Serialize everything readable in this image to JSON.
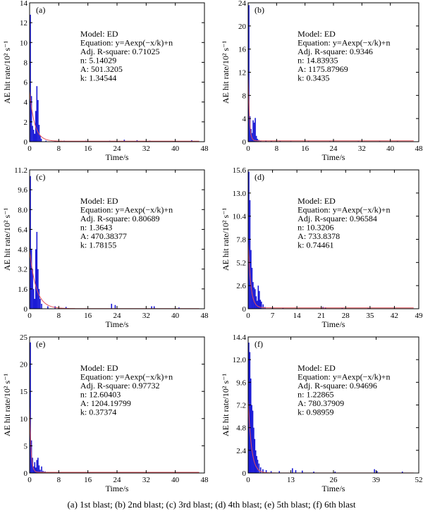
{
  "caption": "(a) 1st blast; (b) 2nd  blast; (c) 3rd blast; (d) 4th blast; (e) 5th blast; (f) 6th blast",
  "colors": {
    "bar": "#1a1ad6",
    "fit": "#e0505a",
    "axis": "#000000"
  },
  "chart_data": [
    {
      "type": "bar",
      "panel_label": "(a)",
      "xlabel": "Time/s",
      "ylabel": "AE hit rate/10² s⁻¹",
      "xlim": [
        0,
        48
      ],
      "ylim": [
        0,
        14
      ],
      "xticks": [
        0,
        8,
        16,
        24,
        32,
        40,
        48
      ],
      "yticks": [
        0,
        2,
        4,
        6,
        8,
        10,
        12,
        14
      ],
      "ytick_labels": [
        "0",
        "2",
        "4",
        "6",
        "8",
        "10",
        "12",
        "14"
      ],
      "fit": {
        "A": 501.3205,
        "k": 1.34544,
        "n": 5.14029
      },
      "annotation": [
        "Model: ED",
        "Equation: y=Aexp(−x/k)+n",
        "Adj. R-square: 0.71025",
        "n: 5.14029",
        "A: 501.3205",
        "k: 1.34544"
      ],
      "bars": [
        [
          0.2,
          12.8
        ],
        [
          0.5,
          4.6
        ],
        [
          0.8,
          1.6
        ],
        [
          1.1,
          1.2
        ],
        [
          1.4,
          0.8
        ],
        [
          1.7,
          3.1
        ],
        [
          2.0,
          5.6
        ],
        [
          2.3,
          4.2
        ],
        [
          2.6,
          1.7
        ],
        [
          2.9,
          0.6
        ],
        [
          3.2,
          0.3
        ],
        [
          4.5,
          0.1
        ],
        [
          7.0,
          0.1
        ],
        [
          9.5,
          0.1
        ],
        [
          15.5,
          0.1
        ],
        [
          22.0,
          0.1
        ],
        [
          26.0,
          0.2
        ],
        [
          29.5,
          0.15
        ],
        [
          33.0,
          0.1
        ],
        [
          44.5,
          0.15
        ]
      ]
    },
    {
      "type": "bar",
      "panel_label": "(b)",
      "xlabel": "Time/s",
      "ylabel": "AE hit rate/10² s⁻¹",
      "xlim": [
        0,
        48
      ],
      "ylim": [
        0,
        24
      ],
      "xticks": [
        0,
        8,
        16,
        24,
        32,
        40,
        48
      ],
      "yticks": [
        0,
        4,
        8,
        12,
        16,
        20,
        24
      ],
      "ytick_labels": [
        "0",
        "4",
        "8",
        "12",
        "16",
        "20",
        "24"
      ],
      "fit": {
        "A": 1175.87969,
        "k": 0.3435,
        "n": 14.83935
      },
      "annotation": [
        "Model: ED",
        "Equation: y=Aexp(−x/k)+n",
        "Adj. R-square: 0.9346",
        "n: 14.83935",
        "A: 1175.87969",
        "k: 0.3435"
      ],
      "bars": [
        [
          0.2,
          23.6
        ],
        [
          0.5,
          4.4
        ],
        [
          0.8,
          2.2
        ],
        [
          1.1,
          1.5
        ],
        [
          1.4,
          3.7
        ],
        [
          1.7,
          3.3
        ],
        [
          2.0,
          4.1
        ],
        [
          2.3,
          1.0
        ],
        [
          2.6,
          0.5
        ],
        [
          3.0,
          0.3
        ],
        [
          3.5,
          0.2
        ],
        [
          5.0,
          0.2
        ],
        [
          6.5,
          0.15
        ],
        [
          9.0,
          0.15
        ],
        [
          12.0,
          0.1
        ],
        [
          17.0,
          0.1
        ],
        [
          23.0,
          0.1
        ],
        [
          31.0,
          0.1
        ],
        [
          37.0,
          0.1
        ],
        [
          42.0,
          0.1
        ]
      ]
    },
    {
      "type": "bar",
      "panel_label": "(c)",
      "xlabel": "Time/s",
      "ylabel": "AE hit rate/10² s⁻¹",
      "xlim": [
        0,
        48
      ],
      "ylim": [
        0,
        11.2
      ],
      "xticks": [
        0,
        8,
        16,
        24,
        32,
        40,
        48
      ],
      "yticks": [
        0,
        1.6,
        3.2,
        4.8,
        6.4,
        8.0,
        9.6,
        11.2
      ],
      "ytick_labels": [
        "0",
        "1.6",
        "3.2",
        "4.8",
        "6.4",
        "8.0",
        "9.6",
        "11.2"
      ],
      "fit": {
        "A": 470.38377,
        "k": 1.78155,
        "n": 1.3643
      },
      "annotation": [
        "Model: ED",
        "Equation: y=Aexp(−x/k)+n",
        "Adj. R-square: 0.80689",
        "n: 1.3643",
        "A: 470.38377",
        "k: 1.78155"
      ],
      "bars": [
        [
          0.2,
          10.7
        ],
        [
          0.5,
          4.8
        ],
        [
          0.8,
          3.2
        ],
        [
          1.1,
          1.6
        ],
        [
          1.4,
          0.8
        ],
        [
          1.7,
          4.8
        ],
        [
          2.0,
          6.2
        ],
        [
          2.3,
          3.2
        ],
        [
          2.6,
          1.6
        ],
        [
          2.9,
          0.8
        ],
        [
          3.3,
          0.4
        ],
        [
          5.0,
          0.2
        ],
        [
          7.0,
          0.2
        ],
        [
          10.0,
          0.15
        ],
        [
          22.5,
          0.4
        ],
        [
          23.5,
          0.3
        ],
        [
          33.5,
          0.2
        ],
        [
          34.2,
          0.2
        ],
        [
          41.0,
          0.1
        ]
      ]
    },
    {
      "type": "bar",
      "panel_label": "(d)",
      "xlabel": "Time/s",
      "ylabel": "AE hit rate/10² s⁻¹",
      "xlim": [
        0,
        49
      ],
      "ylim": [
        0,
        15.6
      ],
      "xticks": [
        0,
        7,
        14,
        21,
        28,
        35,
        42,
        49
      ],
      "yticks": [
        0,
        2.6,
        5.2,
        7.8,
        10.4,
        13.0,
        15.6
      ],
      "ytick_labels": [
        "0",
        "2.6",
        "5.2",
        "7.8",
        "10.4",
        "13.0",
        "15.6"
      ],
      "fit": {
        "A": 733.8378,
        "k": 0.74461,
        "n": 10.3206
      },
      "annotation": [
        "Model: ED",
        "Equation: y=Aexp(−x/k)+n",
        "Adj. R-square: 0.96584",
        "n: 10.3206",
        "A: 733.8378",
        "k: 0.74461"
      ],
      "bars": [
        [
          0.2,
          15.4
        ],
        [
          0.5,
          12.2
        ],
        [
          0.8,
          6.6
        ],
        [
          1.1,
          4.6
        ],
        [
          1.4,
          3.0
        ],
        [
          1.7,
          2.4
        ],
        [
          2.0,
          2.2
        ],
        [
          2.3,
          1.4
        ],
        [
          2.6,
          0.9
        ],
        [
          2.9,
          2.6
        ],
        [
          3.2,
          2.0
        ],
        [
          3.5,
          1.0
        ],
        [
          3.8,
          0.8
        ],
        [
          4.3,
          0.5
        ],
        [
          4.8,
          0.2
        ],
        [
          7.0,
          0.15
        ],
        [
          10.0,
          0.1
        ],
        [
          21.5,
          0.2
        ],
        [
          22.2,
          0.15
        ],
        [
          27.0,
          0.1
        ],
        [
          34.5,
          0.1
        ]
      ]
    },
    {
      "type": "bar",
      "panel_label": "(e)",
      "xlabel": "Time/s",
      "ylabel": "AE hit rate/10² s⁻¹",
      "xlim": [
        0,
        48
      ],
      "ylim": [
        0,
        25
      ],
      "xticks": [
        0,
        8,
        16,
        24,
        32,
        40,
        48
      ],
      "yticks": [
        0,
        5,
        10,
        15,
        20,
        25
      ],
      "ytick_labels": [
        "0",
        "5",
        "10",
        "15",
        "20",
        "25"
      ],
      "fit": {
        "A": 1204.19799,
        "k": 0.37374,
        "n": 12.60403
      },
      "annotation": [
        "Model: ED",
        "Equation: y=Aexp(−x/k)+n",
        "Adj. R-square: 0.97732",
        "n: 12.60403",
        "A: 1204.19799",
        "k: 0.37374"
      ],
      "bars": [
        [
          0.2,
          24.0
        ],
        [
          0.5,
          6.0
        ],
        [
          0.8,
          2.8
        ],
        [
          1.1,
          1.2
        ],
        [
          1.4,
          2.0
        ],
        [
          1.7,
          1.0
        ],
        [
          2.0,
          2.4
        ],
        [
          2.3,
          2.8
        ],
        [
          2.6,
          1.4
        ],
        [
          2.9,
          0.6
        ],
        [
          3.3,
          1.2
        ],
        [
          3.7,
          0.4
        ],
        [
          4.2,
          0.3
        ],
        [
          5.0,
          0.2
        ],
        [
          7.5,
          0.15
        ],
        [
          11.0,
          0.1
        ],
        [
          17.0,
          0.1
        ],
        [
          25.0,
          0.1
        ],
        [
          32.0,
          0.1
        ],
        [
          40.0,
          0.1
        ]
      ]
    },
    {
      "type": "bar",
      "panel_label": "(f)",
      "xlabel": "Time/s",
      "ylabel": "AE hit rate/10² s⁻¹",
      "xlim": [
        0,
        52
      ],
      "ylim": [
        0,
        14.4
      ],
      "xticks": [
        0,
        13,
        26,
        39,
        52
      ],
      "yticks": [
        0,
        2.4,
        4.8,
        7.2,
        9.6,
        12.0,
        14.4
      ],
      "ytick_labels": [
        "0",
        "2.4",
        "4.8",
        "7.2",
        "9.6",
        "12.0",
        "14.4"
      ],
      "fit": {
        "A": 780.37909,
        "k": 0.98959,
        "n": 1.22865
      },
      "annotation": [
        "Model: ED",
        "Equation: y=Aexp(−x/k)+n",
        "Adj. R-square: 0.94696",
        "n: 1.22865",
        "A: 780.37909",
        "k: 0.98959"
      ],
      "bars": [
        [
          0.2,
          13.8
        ],
        [
          0.5,
          12.8
        ],
        [
          0.8,
          10.0
        ],
        [
          1.1,
          7.2
        ],
        [
          1.4,
          6.6
        ],
        [
          1.7,
          4.8
        ],
        [
          2.0,
          3.6
        ],
        [
          2.3,
          2.4
        ],
        [
          2.6,
          1.8
        ],
        [
          2.9,
          1.4
        ],
        [
          3.3,
          1.0
        ],
        [
          3.8,
          0.6
        ],
        [
          4.5,
          0.4
        ],
        [
          5.5,
          0.3
        ],
        [
          7.0,
          0.2
        ],
        [
          9.5,
          0.2
        ],
        [
          13.5,
          0.5
        ],
        [
          14.5,
          0.3
        ],
        [
          16.5,
          0.25
        ],
        [
          20.0,
          0.15
        ],
        [
          26.5,
          0.15
        ],
        [
          38.5,
          0.4
        ],
        [
          39.3,
          0.2
        ],
        [
          47.0,
          0.15
        ]
      ]
    }
  ]
}
